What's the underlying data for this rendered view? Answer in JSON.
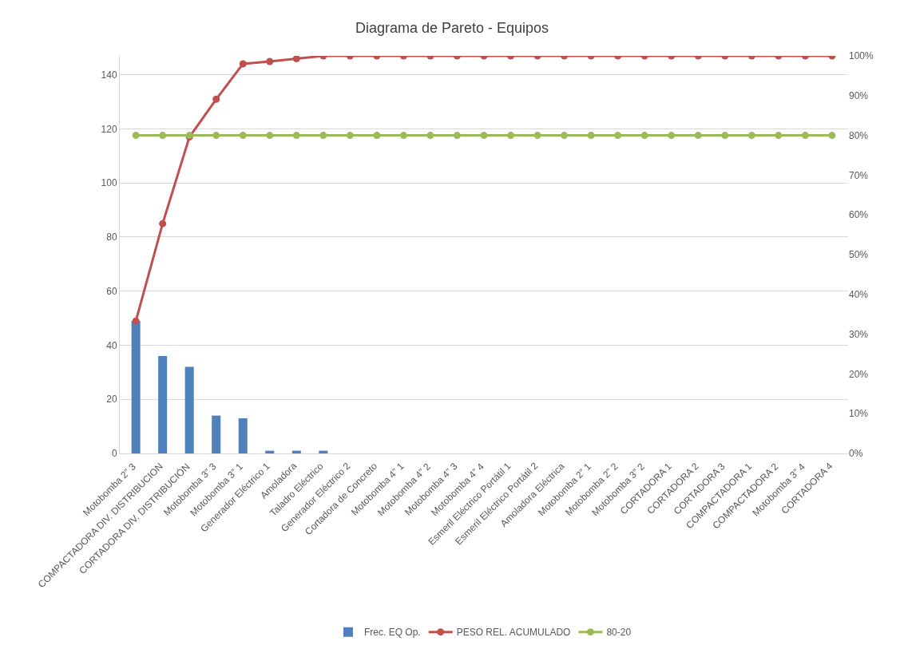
{
  "chart_data": {
    "type": "bar",
    "title": "Diagrama de Pareto - Equipos",
    "categories": [
      "Motobomba 2” 3",
      "COMPACTADORA DIV. DISTRIBUCION",
      "CORTADORA DIV. DISTRIBUCIÓN",
      "Motobomba 3” 3",
      "Motobomba 3” 1",
      "Generador Eléctrico 1",
      "Amoladora",
      "Taladro Eléctrico",
      "Generador Eléctrico 2",
      "Cortadora de Concreto",
      "Motobomba 4” 1",
      "Motobomba 4” 2",
      "Motobomba 4” 3",
      "Motobomba 4” 4",
      "Esmeril Eléctrico Portátil 1",
      "Esmeril Eléctrico Portátil 2",
      "Amoladora Eléctrica",
      "Motobomba 2” 1",
      "Motobomba 2” 2",
      "Motobomba 3” 2",
      "CORTADORA 1",
      "CORTADORA 2",
      "CORTADORA 3",
      "COMPACTADORA 1",
      "COMPACTADORA 2",
      "Motobomba 3” 4",
      "CORTADORA 4"
    ],
    "series": [
      {
        "name": "Frec. EQ Op.",
        "color": "#4f81bd",
        "values": [
          49,
          36,
          32,
          14,
          13,
          1,
          1,
          1,
          0,
          0,
          0,
          0,
          0,
          0,
          0,
          0,
          0,
          0,
          0,
          0,
          0,
          0,
          0,
          0,
          0,
          0,
          0
        ]
      },
      {
        "name": "PESO REL. ACUMULADO",
        "type": "line",
        "axis": "y2",
        "color": "#c0504d",
        "values": [
          33.3,
          57.8,
          79.6,
          89.1,
          98.0,
          98.6,
          99.3,
          100,
          100,
          100,
          100,
          100,
          100,
          100,
          100,
          100,
          100,
          100,
          100,
          100,
          100,
          100,
          100,
          100,
          100,
          100,
          100
        ]
      },
      {
        "name": "80-20",
        "type": "line",
        "axis": "y2",
        "color": "#9bbb59",
        "values": [
          80,
          80,
          80,
          80,
          80,
          80,
          80,
          80,
          80,
          80,
          80,
          80,
          80,
          80,
          80,
          80,
          80,
          80,
          80,
          80,
          80,
          80,
          80,
          80,
          80,
          80,
          80
        ]
      }
    ],
    "ylim": [
      0,
      147
    ],
    "yticks": [
      0,
      20,
      40,
      60,
      80,
      100,
      120,
      140
    ],
    "y2lim": [
      0,
      100
    ],
    "y2ticks": [
      {
        "value": 0,
        "label": "0%"
      },
      {
        "value": 10,
        "label": "10%"
      },
      {
        "value": 20,
        "label": "20%"
      },
      {
        "value": 30,
        "label": "30%"
      },
      {
        "value": 40,
        "label": "40%"
      },
      {
        "value": 50,
        "label": "50%"
      },
      {
        "value": 60,
        "label": "60%"
      },
      {
        "value": 70,
        "label": "70%"
      },
      {
        "value": 80,
        "label": "80%"
      },
      {
        "value": 90,
        "label": "90%"
      },
      {
        "value": 100,
        "label": "100%"
      }
    ],
    "grid": "y",
    "legend": "bottom",
    "marker": "circle",
    "line_style": "solid"
  }
}
